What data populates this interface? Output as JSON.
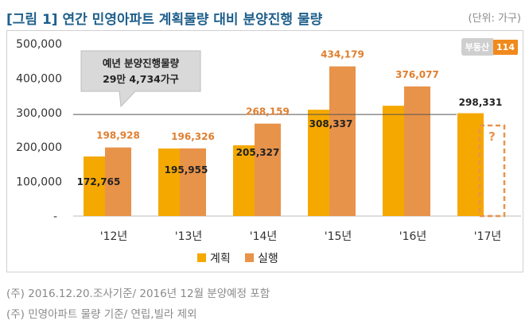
{
  "header": {
    "title": "[그림 1] 연간 민영아파트 계획물량 대비 분양진행 물량",
    "unit": "(단위: 가구)"
  },
  "logo": {
    "text": "부동산",
    "badge": "114"
  },
  "callout": {
    "line1": "예년 분양진행물량",
    "line2": "29만 4,734가구"
  },
  "notes": [
    "(주) 2016.12.20.조사기준/ 2016년 12월 분양예정 포함",
    "(주) 민영아파트 물량 기준/ 연립,빌라 제외"
  ],
  "unknown_marker": "?",
  "colors": {
    "plan": "#f5a800",
    "actual": "#e8934a",
    "title": "#1f5f8b"
  },
  "chart_data": {
    "type": "bar",
    "categories": [
      "'12년",
      "'13년",
      "'14년",
      "'15년",
      "'16년",
      "'17년"
    ],
    "series": [
      {
        "name": "계획",
        "values": [
          172765,
          195955,
          205327,
          308337,
          320000,
          298331
        ],
        "labels": [
          "172,765",
          "195,955",
          "205,327",
          "308,337",
          "",
          "298,331"
        ]
      },
      {
        "name": "실행",
        "values": [
          198928,
          196326,
          268159,
          434179,
          376077,
          null
        ],
        "labels": [
          "198,928",
          "196,326",
          "268,159",
          "434,179",
          "376,077",
          ""
        ]
      }
    ],
    "yticks": [
      "500,000",
      "400,000",
      "300,000",
      "200,000",
      "100,000",
      "-"
    ],
    "ylim": [
      0,
      500000
    ],
    "reference_line": 294734,
    "legend_position": "bottom"
  }
}
